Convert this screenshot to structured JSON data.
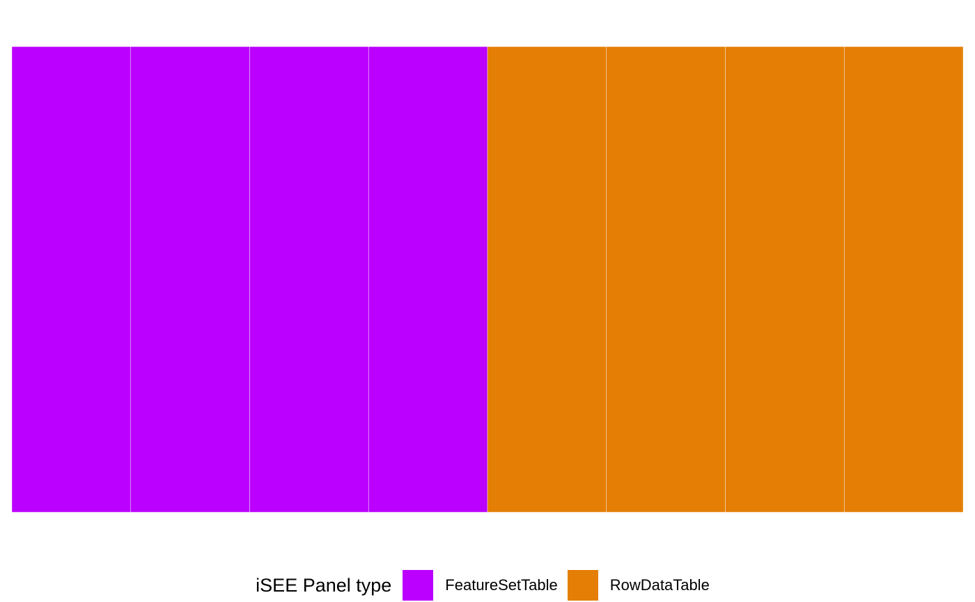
{
  "chart_data": {
    "type": "heatmap",
    "cells": [
      {
        "category": "FeatureSetTable",
        "value": 1
      },
      {
        "category": "FeatureSetTable",
        "value": 1
      },
      {
        "category": "FeatureSetTable",
        "value": 1
      },
      {
        "category": "FeatureSetTable",
        "value": 1
      },
      {
        "category": "RowDataTable",
        "value": 1
      },
      {
        "category": "RowDataTable",
        "value": 1
      },
      {
        "category": "RowDataTable",
        "value": 1
      },
      {
        "category": "RowDataTable",
        "value": 1
      }
    ],
    "legend": {
      "title": "iSEE Panel type",
      "position": "bottom",
      "entries": [
        {
          "label": "FeatureSetTable",
          "color": "#BB00FF"
        },
        {
          "label": "RowDataTable",
          "color": "#E47E04"
        }
      ]
    },
    "grid": false,
    "title": "",
    "xlabel": "",
    "ylabel": ""
  }
}
